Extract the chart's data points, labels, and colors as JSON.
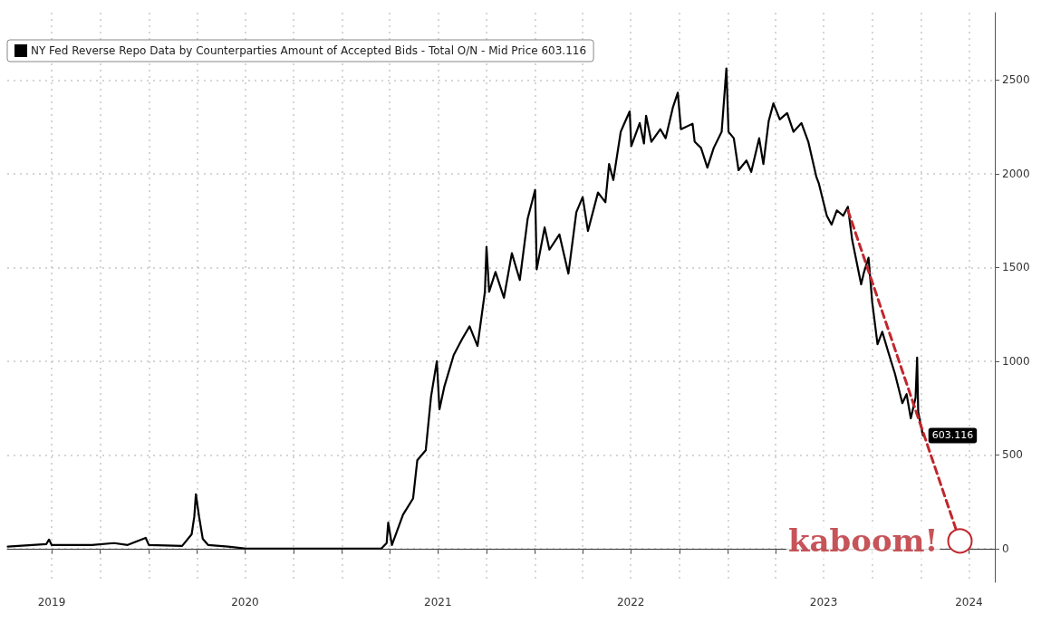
{
  "chart_data": {
    "type": "line",
    "legend": "top left",
    "grid": true,
    "xlim": [
      "2019-04-08",
      "2024-05-20"
    ],
    "ylim": [
      -180,
      2860
    ],
    "yticks": [
      0,
      500,
      1000,
      1500,
      2000,
      2500
    ],
    "xticks": [
      {
        "value": "2019-07-01",
        "label": "2019"
      },
      {
        "value": "2019-10-01",
        "label": null
      },
      {
        "value": "2020-01-01",
        "label": null
      },
      {
        "value": "2020-04-01",
        "label": null
      },
      {
        "value": "2020-07-01",
        "label": "2020"
      },
      {
        "value": "2020-10-01",
        "label": null
      },
      {
        "value": "2021-01-01",
        "label": null
      },
      {
        "value": "2021-04-01",
        "label": null
      },
      {
        "value": "2021-07-01",
        "label": "2021"
      },
      {
        "value": "2021-10-01",
        "label": null
      },
      {
        "value": "2022-01-01",
        "label": null
      },
      {
        "value": "2022-04-01",
        "label": null
      },
      {
        "value": "2022-07-01",
        "label": "2022"
      },
      {
        "value": "2022-10-01",
        "label": null
      },
      {
        "value": "2023-01-01",
        "label": null
      },
      {
        "value": "2023-04-01",
        "label": null
      },
      {
        "value": "2023-07-01",
        "label": "2023"
      },
      {
        "value": "2023-10-01",
        "label": null
      },
      {
        "value": "2024-01-01",
        "label": null
      },
      {
        "value": "2024-04-01",
        "label": "2024"
      }
    ],
    "annotations": [
      {
        "text": "kaboom!",
        "x": "2024-03-15",
        "y": 40
      }
    ],
    "series": [
      {
        "name": "NY Fed Reverse Repo Data by Counterparties Amount of Accepted Bids - Total O/N - Mid Price 603.116",
        "color": "#000000",
        "line_style": "solid",
        "x": [
          "2019-04-09",
          "2019-06-21",
          "2019-06-26",
          "2019-07-01",
          "2019-09-15",
          "2019-10-27",
          "2019-11-22",
          "2019-12-26",
          "2020-01-01",
          "2020-03-04",
          "2020-03-22",
          "2020-03-27",
          "2020-03-30",
          "2020-04-05",
          "2020-04-12",
          "2020-04-22",
          "2020-05-30",
          "2020-07-03",
          "2021-03-16",
          "2021-03-26",
          "2021-03-29",
          "2021-04-05",
          "2021-04-26",
          "2021-05-15",
          "2021-05-23",
          "2021-06-08",
          "2021-06-18",
          "2021-06-29",
          "2021-07-04",
          "2021-07-13",
          "2021-07-31",
          "2021-08-16",
          "2021-08-30",
          "2021-09-14",
          "2021-09-28",
          "2021-10-01",
          "2021-10-06",
          "2021-10-18",
          "2021-11-03",
          "2021-11-18",
          "2021-12-03",
          "2021-12-18",
          "2022-01-01",
          "2022-01-04",
          "2022-01-19",
          "2022-01-28",
          "2022-02-16",
          "2022-03-05",
          "2022-03-20",
          "2022-04-01",
          "2022-04-11",
          "2022-04-30",
          "2022-05-14",
          "2022-05-21",
          "2022-05-29",
          "2022-06-12",
          "2022-06-17",
          "2022-06-29",
          "2022-07-02",
          "2022-07-18",
          "2022-07-26",
          "2022-07-30",
          "2022-08-09",
          "2022-08-26",
          "2022-09-05",
          "2022-09-19",
          "2022-09-28",
          "2022-10-04",
          "2022-10-26",
          "2022-10-30",
          "2022-11-11",
          "2022-11-23",
          "2022-12-05",
          "2022-12-20",
          "2022-12-29",
          "2023-01-02",
          "2023-01-12",
          "2023-01-21",
          "2023-02-05",
          "2023-02-14",
          "2023-03-01",
          "2023-03-09",
          "2023-03-19",
          "2023-03-28",
          "2023-04-09",
          "2023-04-23",
          "2023-05-05",
          "2023-05-20",
          "2023-06-02",
          "2023-06-17",
          "2023-06-22",
          "2023-07-07",
          "2023-07-16",
          "2023-07-26",
          "2023-08-07",
          "2023-08-16",
          "2023-08-24",
          "2023-09-10",
          "2023-09-15",
          "2023-09-24",
          "2023-10-01",
          "2023-10-11",
          "2023-10-20",
          "2023-11-01",
          "2023-11-13",
          "2023-11-27",
          "2023-12-05",
          "2023-12-13",
          "2023-12-22",
          "2023-12-25",
          "2023-12-27",
          "2024-01-05"
        ],
        "values": [
          10,
          24,
          48,
          19,
          19,
          29,
          19,
          57,
          19,
          14,
          76,
          171,
          290,
          171,
          52,
          19,
          10,
          0,
          0,
          29,
          138,
          19,
          181,
          267,
          471,
          524,
          810,
          1000,
          743,
          862,
          1033,
          1119,
          1186,
          1081,
          1371,
          1610,
          1371,
          1476,
          1338,
          1576,
          1433,
          1762,
          1914,
          1490,
          1714,
          1595,
          1676,
          1467,
          1795,
          1876,
          1695,
          1900,
          1848,
          2052,
          1967,
          2224,
          2257,
          2333,
          2148,
          2271,
          2162,
          2310,
          2171,
          2238,
          2190,
          2357,
          2433,
          2238,
          2267,
          2171,
          2138,
          2033,
          2138,
          2224,
          2562,
          2224,
          2190,
          2019,
          2071,
          2010,
          2190,
          2052,
          2281,
          2376,
          2290,
          2324,
          2224,
          2271,
          2171,
          1986,
          1948,
          1776,
          1729,
          1805,
          1776,
          1824,
          1648,
          1410,
          1471,
          1552,
          1314,
          1090,
          1157,
          1043,
          933,
          776,
          824,
          695,
          805,
          1019,
          729,
          603.116
        ],
        "value_labels": [
          null,
          null,
          null,
          null,
          null,
          null,
          null,
          null,
          null,
          null,
          null,
          null,
          null,
          null,
          null,
          null,
          null,
          null,
          null,
          null,
          null,
          null,
          null,
          null,
          null,
          null,
          null,
          null,
          null,
          null,
          null,
          null,
          null,
          null,
          null,
          null,
          null,
          null,
          null,
          null,
          null,
          null,
          null,
          null,
          null,
          null,
          null,
          null,
          null,
          null,
          null,
          null,
          null,
          null,
          null,
          null,
          null,
          null,
          null,
          null,
          null,
          null,
          null,
          null,
          null,
          null,
          null,
          null,
          null,
          null,
          null,
          null,
          null,
          null,
          null,
          null,
          null,
          null,
          null,
          null,
          null,
          null,
          null,
          null,
          null,
          null,
          null,
          null,
          null,
          null,
          null,
          null,
          null,
          null,
          null,
          null,
          null,
          null,
          null,
          null,
          null,
          null,
          null,
          null,
          null,
          null,
          null,
          null,
          null,
          null,
          null,
          "603.116"
        ]
      },
      {
        "type": "line",
        "color": "#c0272d",
        "line_style": "dashed",
        "marker": "circle",
        "x": [
          "2023-08-16",
          "2024-03-15"
        ],
        "values": [
          1805,
          40
        ]
      }
    ]
  }
}
